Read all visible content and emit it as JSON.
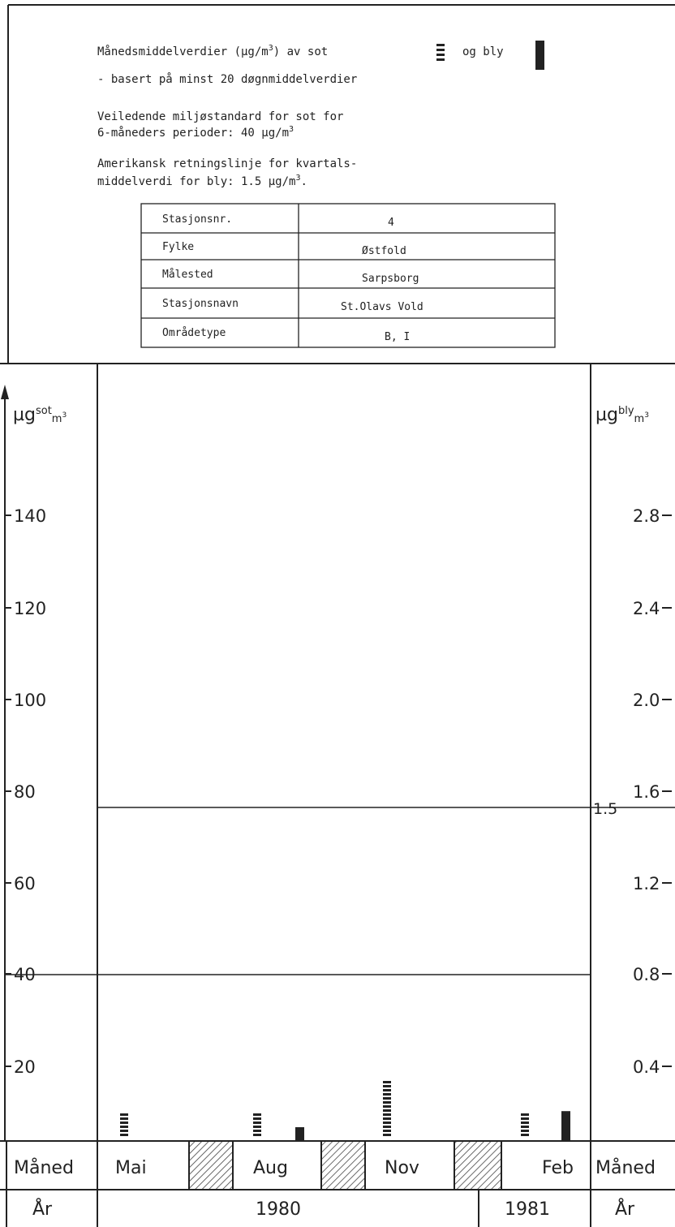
{
  "header": {
    "line1_pre": "Månedsmiddelverdier (µg/m",
    "line1_sup": "3",
    "line1_mid": ") av sot",
    "line1_post": "og bly",
    "line2": "- basert på minst 20 døgnmiddelverdier",
    "note1_line1": "Veiledende miljøstandard for sot for",
    "note1_line2_pre": "6-måneders perioder: 40 µg/m",
    "note1_line2_sup": "3",
    "note2_line1": "Amerikansk retningslinje for kvartals-",
    "note2_line2_pre": "middelverdi for bly: 1.5 µg/m",
    "note2_line2_sup": "3",
    "note2_line2_post": "."
  },
  "info_table": [
    {
      "label": "Stasjonsnr.",
      "value": "4"
    },
    {
      "label": "Fylke",
      "value": "Østfold"
    },
    {
      "label": "Målested",
      "value": "Sarpsborg"
    },
    {
      "label": "Stasjonsnavn",
      "value": "St.Olavs Vold"
    },
    {
      "label": "Områdetype",
      "value": "B, I"
    }
  ],
  "bottom_table": {
    "month_label_left": "Måned",
    "month_label_right": "Måned",
    "year_label_left": "År",
    "year_label_right": "År",
    "months": [
      "Mai",
      "Aug",
      "Nov",
      "Feb"
    ],
    "years": [
      "1980",
      "1981"
    ]
  },
  "chart_data": {
    "type": "bar",
    "categories": [
      "Mai",
      "Aug",
      "Nov",
      "Feb"
    ],
    "y_left": {
      "label_main": "µg",
      "label_sup": "sot",
      "label_sub": "m",
      "label_exp": "3",
      "ylim": [
        0,
        160
      ],
      "ticks": [
        "140",
        "120",
        "100",
        "80",
        "60",
        "40",
        "20"
      ]
    },
    "y_right": {
      "label_main": "µg",
      "label_sup": "bly",
      "label_sub": "m",
      "label_exp": "3",
      "ylim": [
        0,
        3.2
      ],
      "ticks": [
        "2.8",
        "2.4",
        "2.0",
        "1.6",
        "1.2",
        "0.8",
        "0.4"
      ]
    },
    "series": [
      {
        "name": "sot",
        "axis": "left",
        "values": [
          6,
          6,
          13,
          6
        ]
      },
      {
        "name": "bly",
        "axis": "right",
        "values": [
          null,
          0.06,
          null,
          0.13
        ]
      }
    ],
    "reference_lines": [
      {
        "axis": "left",
        "value": 40
      },
      {
        "axis": "right",
        "value": 1.5,
        "label": "1.5"
      }
    ]
  },
  "colors": {
    "ink": "#222222",
    "hatch": "#444444",
    "paper": "#ffffff"
  }
}
